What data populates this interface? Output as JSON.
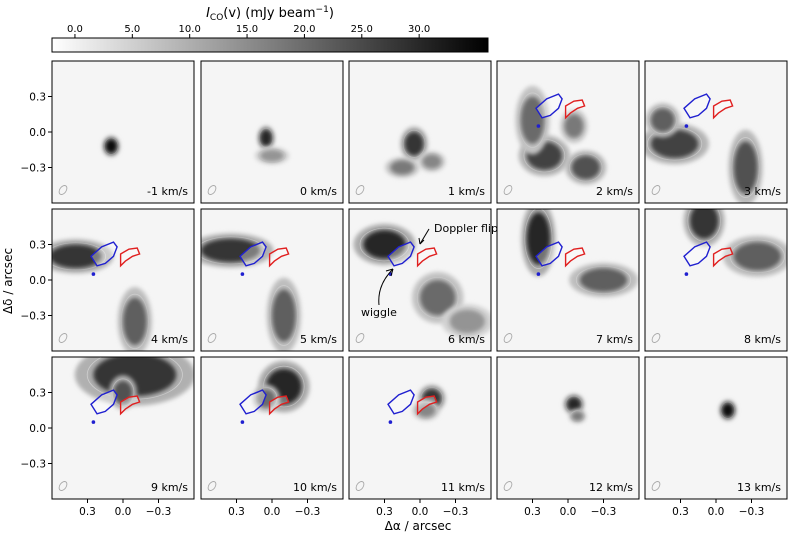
{
  "chart_data": {
    "type": "heatmap",
    "colorbar": {
      "label": "I_CO(v) (mJy beam^-1)",
      "label_main": "I",
      "label_sub": "CO",
      "label_mid": "(v) (mJy beam",
      "label_sup": "−1",
      "label_end": ")",
      "range": [
        -2,
        36
      ],
      "ticks": [
        0.0,
        5.0,
        10.0,
        15.0,
        20.0,
        25.0,
        30.0
      ],
      "tick_labels": [
        "0.0",
        "5.0",
        "10.0",
        "15.0",
        "20.0",
        "25.0",
        "30.0"
      ],
      "colormap": "greys",
      "low_color": "#ffffff",
      "high_color": "#000000"
    },
    "xlabel": "Δα / arcsec",
    "ylabel": "Δδ / arcsec",
    "xlim": [
      0.6,
      -0.6
    ],
    "ylim": [
      -0.6,
      0.6
    ],
    "xticks": [
      0.3,
      0.0,
      -0.3
    ],
    "xtick_labels": [
      "0.3",
      "0.0",
      "−0.3"
    ],
    "yticks": [
      0.3,
      0.0,
      -0.3
    ],
    "ytick_labels": [
      "0.3",
      "0.0",
      "−0.3"
    ],
    "grid": false,
    "channels": [
      {
        "label": "-1 km/s",
        "velocity": -1,
        "blobs": [
          {
            "x": 0.1,
            "y": -0.12,
            "rx": 0.05,
            "ry": 0.06,
            "peak": 34
          }
        ]
      },
      {
        "label": "0 km/s",
        "velocity": 0,
        "blobs": [
          {
            "x": 0.05,
            "y": -0.05,
            "rx": 0.05,
            "ry": 0.07,
            "peak": 30
          },
          {
            "x": 0.0,
            "y": -0.2,
            "rx": 0.1,
            "ry": 0.05,
            "peak": 14
          }
        ]
      },
      {
        "label": "1 km/s",
        "velocity": 1,
        "blobs": [
          {
            "x": 0.05,
            "y": -0.1,
            "rx": 0.08,
            "ry": 0.1,
            "peak": 28
          },
          {
            "x": 0.15,
            "y": -0.3,
            "rx": 0.1,
            "ry": 0.06,
            "peak": 18
          },
          {
            "x": -0.1,
            "y": -0.25,
            "rx": 0.08,
            "ry": 0.06,
            "peak": 16
          }
        ]
      },
      {
        "label": "2 km/s",
        "velocity": 2,
        "blobs": [
          {
            "x": 0.2,
            "y": -0.2,
            "rx": 0.15,
            "ry": 0.12,
            "peak": 26
          },
          {
            "x": -0.15,
            "y": -0.3,
            "rx": 0.12,
            "ry": 0.1,
            "peak": 24
          },
          {
            "x": 0.3,
            "y": 0.1,
            "rx": 0.1,
            "ry": 0.2,
            "peak": 20
          },
          {
            "x": -0.05,
            "y": 0.05,
            "rx": 0.08,
            "ry": 0.1,
            "peak": 18
          }
        ]
      },
      {
        "label": "3 km/s",
        "velocity": 3,
        "blobs": [
          {
            "x": 0.35,
            "y": -0.1,
            "rx": 0.2,
            "ry": 0.12,
            "peak": 26
          },
          {
            "x": 0.45,
            "y": 0.1,
            "rx": 0.1,
            "ry": 0.1,
            "peak": 22
          },
          {
            "x": -0.25,
            "y": -0.3,
            "rx": 0.1,
            "ry": 0.22,
            "peak": 24
          }
        ]
      },
      {
        "label": "4 km/s",
        "velocity": 4,
        "blobs": [
          {
            "x": 0.4,
            "y": 0.2,
            "rx": 0.22,
            "ry": 0.1,
            "peak": 28
          },
          {
            "x": -0.1,
            "y": -0.35,
            "rx": 0.1,
            "ry": 0.2,
            "peak": 22
          }
        ]
      },
      {
        "label": "5 km/s",
        "velocity": 5,
        "blobs": [
          {
            "x": 0.35,
            "y": 0.25,
            "rx": 0.25,
            "ry": 0.1,
            "peak": 28
          },
          {
            "x": -0.1,
            "y": -0.3,
            "rx": 0.1,
            "ry": 0.22,
            "peak": 22
          }
        ]
      },
      {
        "label": "6 km/s",
        "velocity": 6,
        "blobs": [
          {
            "x": 0.3,
            "y": 0.3,
            "rx": 0.18,
            "ry": 0.12,
            "peak": 30
          },
          {
            "x": -0.15,
            "y": -0.15,
            "rx": 0.15,
            "ry": 0.15,
            "peak": 20
          },
          {
            "x": -0.4,
            "y": -0.35,
            "rx": 0.15,
            "ry": 0.1,
            "peak": 14
          }
        ]
      },
      {
        "label": "7 km/s",
        "velocity": 7,
        "blobs": [
          {
            "x": 0.25,
            "y": 0.35,
            "rx": 0.1,
            "ry": 0.22,
            "peak": 30
          },
          {
            "x": -0.3,
            "y": 0.0,
            "rx": 0.2,
            "ry": 0.1,
            "peak": 22
          }
        ]
      },
      {
        "label": "8 km/s",
        "velocity": 8,
        "blobs": [
          {
            "x": 0.1,
            "y": 0.5,
            "rx": 0.12,
            "ry": 0.15,
            "peak": 28
          },
          {
            "x": -0.35,
            "y": 0.2,
            "rx": 0.2,
            "ry": 0.12,
            "peak": 22
          }
        ]
      },
      {
        "label": "9 km/s",
        "velocity": 9,
        "blobs": [
          {
            "x": -0.1,
            "y": 0.45,
            "rx": 0.35,
            "ry": 0.18,
            "peak": 28
          },
          {
            "x": 0.0,
            "y": 0.3,
            "rx": 0.08,
            "ry": 0.1,
            "peak": 24
          }
        ]
      },
      {
        "label": "10 km/s",
        "velocity": 10,
        "blobs": [
          {
            "x": -0.1,
            "y": 0.35,
            "rx": 0.15,
            "ry": 0.15,
            "peak": 30
          },
          {
            "x": 0.05,
            "y": 0.25,
            "rx": 0.08,
            "ry": 0.08,
            "peak": 20
          }
        ]
      },
      {
        "label": "11 km/s",
        "velocity": 11,
        "blobs": [
          {
            "x": -0.1,
            "y": 0.25,
            "rx": 0.08,
            "ry": 0.08,
            "peak": 28
          },
          {
            "x": -0.05,
            "y": 0.15,
            "rx": 0.08,
            "ry": 0.06,
            "peak": 16
          }
        ]
      },
      {
        "label": "12 km/s",
        "velocity": 12,
        "blobs": [
          {
            "x": -0.05,
            "y": 0.2,
            "rx": 0.06,
            "ry": 0.06,
            "peak": 30
          },
          {
            "x": -0.08,
            "y": 0.1,
            "rx": 0.05,
            "ry": 0.04,
            "peak": 18
          }
        ]
      },
      {
        "label": "13 km/s",
        "velocity": 13,
        "blobs": [
          {
            "x": -0.1,
            "y": 0.15,
            "rx": 0.05,
            "ry": 0.06,
            "peak": 34
          }
        ]
      }
    ],
    "overlays": {
      "blue_color": "#2020d0",
      "red_color": "#e02020",
      "blue_lobe": [
        [
          0.22,
          0.12
        ],
        [
          0.27,
          0.2
        ],
        [
          0.18,
          0.28
        ],
        [
          0.08,
          0.32
        ],
        [
          0.05,
          0.28
        ],
        [
          0.08,
          0.2
        ],
        [
          0.15,
          0.14
        ]
      ],
      "blue_dot": [
        0.25,
        0.05
      ],
      "red_lobe": [
        [
          0.02,
          0.22
        ],
        [
          -0.05,
          0.26
        ],
        [
          -0.12,
          0.27
        ],
        [
          -0.14,
          0.22
        ],
        [
          -0.08,
          0.2
        ],
        [
          -0.02,
          0.16
        ],
        [
          0.02,
          0.12
        ]
      ],
      "present_in_channels": [
        3,
        4,
        5,
        6,
        7,
        8,
        9,
        10,
        11,
        12
      ]
    },
    "annotations": [
      {
        "channel": 6,
        "text": "Doppler flip"
      },
      {
        "channel": 6,
        "text": "wiggle"
      }
    ]
  }
}
